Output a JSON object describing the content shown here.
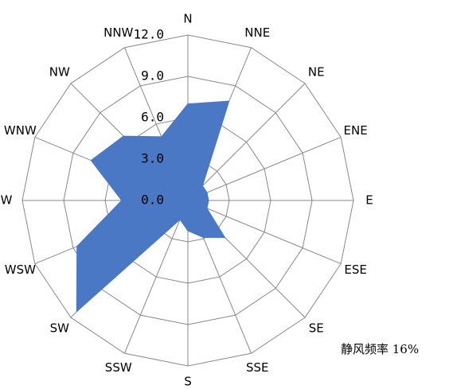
{
  "chart_data": {
    "type": "radar",
    "categories": [
      "N",
      "NNE",
      "NE",
      "ENE",
      "E",
      "ESE",
      "SE",
      "SSE",
      "S",
      "SSW",
      "SW",
      "WSW",
      "W",
      "WNW",
      "NW",
      "NNW"
    ],
    "values": [
      7.0,
      7.8,
      1.5,
      1.5,
      1.5,
      1.5,
      3.8,
      2.9,
      2.2,
      1.5,
      11.4,
      8.7,
      4.8,
      7.6,
      6.6,
      5.0
    ],
    "color": "#4a78c4",
    "ylim": [
      0,
      12
    ],
    "yticks": [
      {
        "value": 0,
        "label": "0.0"
      },
      {
        "value": 3,
        "label": "3.0"
      },
      {
        "value": 6,
        "label": "6.0"
      },
      {
        "value": 9,
        "label": "9.0"
      },
      {
        "value": 12,
        "label": "12.0"
      }
    ],
    "annotation": "静风频率 16%"
  }
}
